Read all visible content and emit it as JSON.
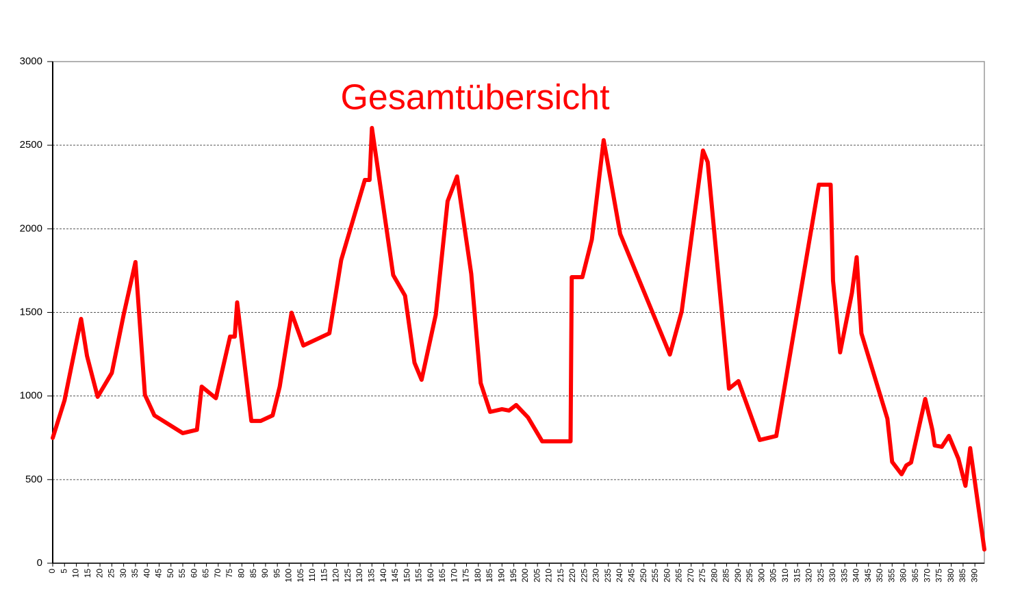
{
  "chart_data": {
    "type": "line",
    "title": "Gesamtübersicht",
    "title_color": "#ff0000",
    "series": [
      {
        "color": "#ff0000",
        "x": [
          0,
          5,
          12,
          14.5,
          19,
          25,
          30,
          35,
          39,
          43,
          55,
          61,
          63,
          69,
          75,
          77,
          78,
          84,
          88,
          93,
          96,
          101,
          106,
          117,
          122,
          132,
          134,
          135,
          144,
          149,
          153,
          156,
          162,
          167,
          171,
          177,
          181,
          185,
          190,
          193,
          196,
          201,
          207,
          219,
          219.5,
          224,
          228,
          233,
          240,
          261,
          266,
          275,
          277,
          286,
          290,
          299,
          306,
          324,
          329,
          330,
          333,
          338,
          340,
          342,
          353,
          355,
          359,
          361,
          363,
          369,
          372,
          373,
          376,
          379,
          383,
          386,
          388,
          394
        ],
        "values": [
          749,
          974,
          1461,
          1240,
          995,
          1138,
          1486,
          1801,
          1007,
          884,
          778,
          798,
          1056,
          987,
          1355,
          1355,
          1560,
          851,
          851,
          884,
          1056,
          1498,
          1302,
          1375,
          1813,
          2292,
          2292,
          2603,
          1723,
          1600,
          1199,
          1097,
          1486,
          2165,
          2313,
          1731,
          1077,
          905,
          921,
          913,
          946,
          872,
          729,
          729,
          1711,
          1711,
          1936,
          2530,
          1969,
          1248,
          1506,
          2468,
          2399,
          1044,
          1089,
          737,
          761,
          2264,
          2264,
          1690,
          1261,
          1617,
          1830,
          1375,
          864,
          606,
          532,
          585,
          602,
          982,
          798,
          704,
          696,
          761,
          626,
          463,
          688,
          82
        ]
      }
    ],
    "xlim": [
      0,
      394
    ],
    "xticks": [
      0,
      5,
      10,
      15,
      20,
      25,
      30,
      35,
      40,
      45,
      50,
      55,
      60,
      65,
      70,
      75,
      80,
      85,
      90,
      95,
      100,
      105,
      110,
      115,
      120,
      125,
      130,
      135,
      140,
      145,
      150,
      155,
      160,
      165,
      170,
      175,
      180,
      185,
      190,
      195,
      200,
      205,
      210,
      215,
      220,
      225,
      230,
      235,
      240,
      245,
      250,
      255,
      260,
      265,
      270,
      275,
      280,
      285,
      290,
      295,
      300,
      305,
      310,
      315,
      320,
      325,
      330,
      335,
      340,
      345,
      350,
      355,
      360,
      365,
      370,
      375,
      380,
      385,
      390
    ],
    "ylim": [
      0,
      3000
    ],
    "yticks": [
      0,
      500,
      1000,
      1500,
      2000,
      2500,
      3000
    ],
    "grid": true
  }
}
